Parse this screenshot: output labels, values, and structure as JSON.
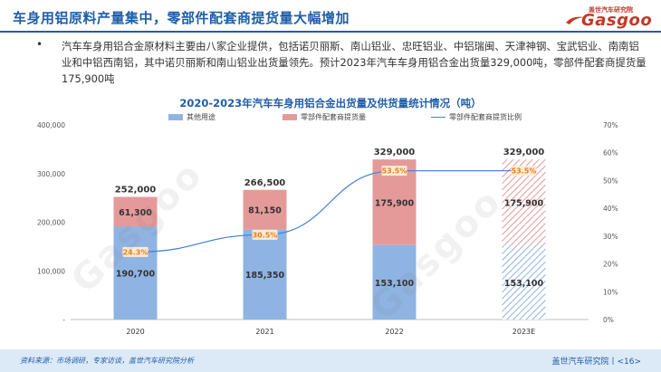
{
  "header": {
    "title": "车身用铝原料产量集中，零部件配套商提货量大幅增加"
  },
  "logo": {
    "cn": "盖世汽车研究院",
    "en": "Gasgoo"
  },
  "bullet": {
    "text": "汽车车身用铝合金原材料主要由八家企业提供，包括诺贝丽斯、南山铝业、忠旺铝业、中铝瑞闽、天津神钢、宝武铝业、南南铝业和中铝西南铝，其中诺贝丽斯和南山铝业出货量领先。预计2023年汽车车身用铝合金出货量329,000吨，零部件配套商提货量175,900吨"
  },
  "chart_data": {
    "type": "bar",
    "title": "2020-2023年汽车车身用铝合金出货量及供货量统计情况（吨）",
    "categories": [
      "2020",
      "2021",
      "2022",
      "2023E"
    ],
    "series": [
      {
        "name": "其他用途",
        "values": [
          190700,
          185350,
          153100,
          153100
        ],
        "color": "#8fb4e3"
      },
      {
        "name": "零部件配套商提货量",
        "values": [
          61300,
          81150,
          175900,
          175900
        ],
        "color": "#e59a9a"
      },
      {
        "name": "零部件配套商提货比例",
        "values": [
          24.3,
          30.5,
          53.5,
          53.5
        ],
        "color": "#3d7fd4",
        "axis": "right",
        "kind": "line"
      }
    ],
    "totals": [
      252000,
      266500,
      329000,
      329000
    ],
    "labels": {
      "other": [
        "190,700",
        "185,350",
        "153,100",
        "153,100"
      ],
      "supplier": [
        "61,300",
        "81,150",
        "175,900",
        "175,900"
      ],
      "totals": [
        "252,000",
        "266,500",
        "329,000",
        "329,000"
      ],
      "ratio": [
        "24.3%",
        "30.5%",
        "53.5%",
        "53.5%"
      ]
    },
    "forecast_index": 3,
    "ylim_left": [
      0,
      400000
    ],
    "yticks_left": [
      0,
      100000,
      200000,
      300000,
      400000
    ],
    "ytick_labels_left": [
      "-",
      "100,000",
      "200,000",
      "300,000",
      "400,000"
    ],
    "ylim_right": [
      0,
      70
    ],
    "yticks_right": [
      0,
      10,
      20,
      30,
      40,
      50,
      60,
      70
    ],
    "ytick_labels_right": [
      "0%",
      "10%",
      "20%",
      "30%",
      "40%",
      "50%",
      "60%",
      "70%"
    ],
    "legend_position": "top",
    "grid": false
  },
  "footer": {
    "source": "资料来源：市场调研，专家访谈，盖世汽车研究院分析",
    "brand": "盖世汽车研究院丨<16>"
  },
  "colors": {
    "brand_blue": "#1f5ea8",
    "brand_red": "#c0392b",
    "ratio_label": "#e67e22"
  }
}
